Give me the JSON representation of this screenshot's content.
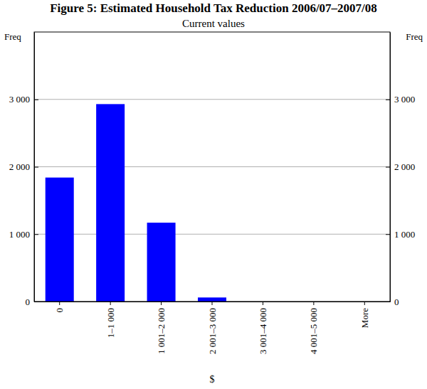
{
  "chart_data": {
    "type": "bar",
    "title": "Figure 5: Estimated Household Tax Reduction 2006/07–2007/08",
    "subtitle": "Current values",
    "y_label": "Freq",
    "x_label": "$",
    "categories": [
      "0",
      "1–1 000",
      "1 001–2 000",
      "2 001–3 000",
      "3 001–4 000",
      "4 001–5 000",
      "More"
    ],
    "values": [
      1840,
      2930,
      1170,
      60,
      0,
      0,
      0
    ],
    "color": "#0000ff",
    "ylim": [
      0,
      4000
    ],
    "yticks": [
      0,
      {
        "value": 1000,
        "label": "1 000"
      },
      {
        "value": 2000,
        "label": "2 000"
      },
      {
        "value": 3000,
        "label": "3 000"
      }
    ],
    "grid": true
  }
}
